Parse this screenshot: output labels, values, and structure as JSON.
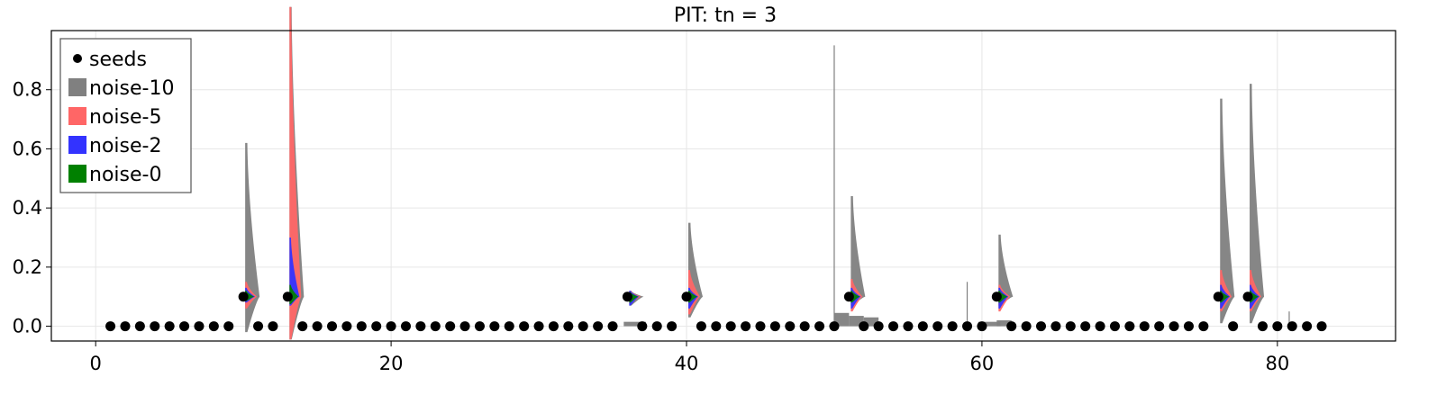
{
  "chart_data": {
    "type": "scatter",
    "title": "PIT: tn = 3",
    "xlabel": "",
    "ylabel": "",
    "xlim": [
      -3,
      88
    ],
    "ylim": [
      -0.05,
      1.0
    ],
    "x_ticks": [
      0,
      20,
      40,
      60,
      80
    ],
    "x_tick_labels": [
      "0",
      "20",
      "40",
      "60",
      "80"
    ],
    "y_ticks": [
      0.0,
      0.2,
      0.4,
      0.6,
      0.8
    ],
    "y_tick_labels": [
      "0.0",
      "0.2",
      "0.4",
      "0.6",
      "0.8"
    ],
    "grid": true,
    "legend": {
      "position": "top-left",
      "entries": [
        {
          "label": "seeds",
          "marker": "dot",
          "color": "#000000"
        },
        {
          "label": "noise-10",
          "marker": "square",
          "color": "#808080"
        },
        {
          "label": "noise-5",
          "marker": "square",
          "color": "#ff6666"
        },
        {
          "label": "noise-2",
          "marker": "square",
          "color": "#3333ff"
        },
        {
          "label": "noise-0",
          "marker": "square",
          "color": "#008000"
        }
      ]
    },
    "seeds": {
      "name": "seeds",
      "color": "#000000",
      "x": [
        1,
        2,
        3,
        4,
        5,
        6,
        7,
        8,
        9,
        10,
        11,
        12,
        13,
        14,
        15,
        16,
        17,
        18,
        19,
        20,
        21,
        22,
        23,
        24,
        25,
        26,
        27,
        28,
        29,
        30,
        31,
        32,
        33,
        34,
        35,
        36,
        37,
        38,
        39,
        40,
        41,
        42,
        43,
        44,
        45,
        46,
        47,
        48,
        49,
        50,
        51,
        52,
        53,
        54,
        55,
        56,
        57,
        58,
        59,
        60,
        61,
        62,
        63,
        64,
        65,
        66,
        67,
        68,
        69,
        70,
        71,
        72,
        73,
        74,
        75,
        76,
        77,
        78,
        79,
        80,
        81,
        82,
        83
      ],
      "y": [
        0,
        0,
        0,
        0,
        0,
        0,
        0,
        0,
        0,
        0.1,
        0,
        0,
        0.1,
        0,
        0,
        0,
        0,
        0,
        0,
        0,
        0,
        0,
        0,
        0,
        0,
        0,
        0,
        0,
        0,
        0,
        0,
        0,
        0,
        0,
        0,
        0.1,
        0,
        0,
        0,
        0.1,
        0,
        0,
        0,
        0,
        0,
        0,
        0,
        0,
        0,
        0,
        0.1,
        0,
        0,
        0,
        0,
        0,
        0,
        0,
        0,
        0,
        0.1,
        0,
        0,
        0,
        0,
        0,
        0,
        0,
        0,
        0,
        0,
        0,
        0,
        0,
        0,
        0.1,
        0,
        0.1,
        0,
        0,
        0,
        0,
        0
      ]
    },
    "distributions": [
      {
        "x": 10,
        "base": 0.1,
        "noise-10": [
          0.52,
          0.12,
          0.06
        ],
        "noise-5": [
          0.05,
          0.04
        ],
        "noise-2": [
          0.03,
          0.02
        ],
        "noise-0": [
          0.02,
          0.015
        ]
      },
      {
        "x": 13,
        "base": 0.1,
        "noise-10": [
          0.98,
          0.6
        ],
        "noise-5": [
          0.98,
          0.7
        ],
        "noise-2": [
          0.2,
          0.03
        ],
        "noise-0": [
          0.04,
          0.025
        ]
      },
      {
        "x": 36,
        "base": 0.1,
        "noise-10": [
          0.02,
          0.03
        ],
        "noise-5": [
          0.02,
          0.025
        ],
        "noise-2": [
          0.02,
          0.03
        ],
        "noise-0": [
          0.015,
          0.02
        ]
      },
      {
        "x": 40,
        "base": 0.1,
        "noise-10": [
          0.25,
          0.07
        ],
        "noise-5": [
          0.09,
          0.06
        ],
        "noise-2": [
          0.03,
          0.04
        ],
        "noise-0": [
          0.02,
          0.02
        ]
      },
      {
        "x": 51,
        "base": 0.1,
        "noise-10": [
          0.34,
          0.03
        ],
        "noise-5": [
          0.06,
          0.05
        ],
        "noise-2": [
          0.03,
          0.04
        ],
        "noise-0": [
          0.02,
          0.02
        ]
      },
      {
        "x": 61,
        "base": 0.1,
        "noise-10": [
          0.21,
          0.03
        ],
        "noise-5": [
          0.04,
          0.05
        ],
        "noise-2": [
          0.03,
          0.04
        ],
        "noise-0": [
          0.02,
          0.02
        ]
      },
      {
        "x": 76,
        "base": 0.1,
        "noise-10": [
          0.67,
          0.09
        ],
        "noise-5": [
          0.09,
          0.05
        ],
        "noise-2": [
          0.04,
          0.04
        ],
        "noise-0": [
          0.02,
          0.02
        ]
      },
      {
        "x": 78,
        "base": 0.1,
        "noise-10": [
          0.72,
          0.09
        ],
        "noise-5": [
          0.09,
          0.05
        ],
        "noise-2": [
          0.04,
          0.04
        ],
        "noise-0": [
          0.02,
          0.02
        ]
      }
    ],
    "baseline_noise10_bars": [
      {
        "x": 36.5,
        "height": 0.015,
        "width": 1.5
      },
      {
        "x": 50.5,
        "height": 0.045,
        "width": 1.0
      },
      {
        "x": 51.5,
        "height": 0.035,
        "width": 1.0
      },
      {
        "x": 52.5,
        "height": 0.03,
        "width": 1.0
      },
      {
        "x": 60.5,
        "height": 0.015,
        "width": 1.5
      },
      {
        "x": 61.5,
        "height": 0.02,
        "width": 1.0
      }
    ],
    "spikes": [
      {
        "x": 50,
        "y": [
          0.0,
          0.95
        ]
      },
      {
        "x": 59,
        "y": [
          0.0,
          0.15
        ]
      },
      {
        "x": 80.8,
        "y": [
          0.0,
          0.05
        ]
      }
    ]
  }
}
